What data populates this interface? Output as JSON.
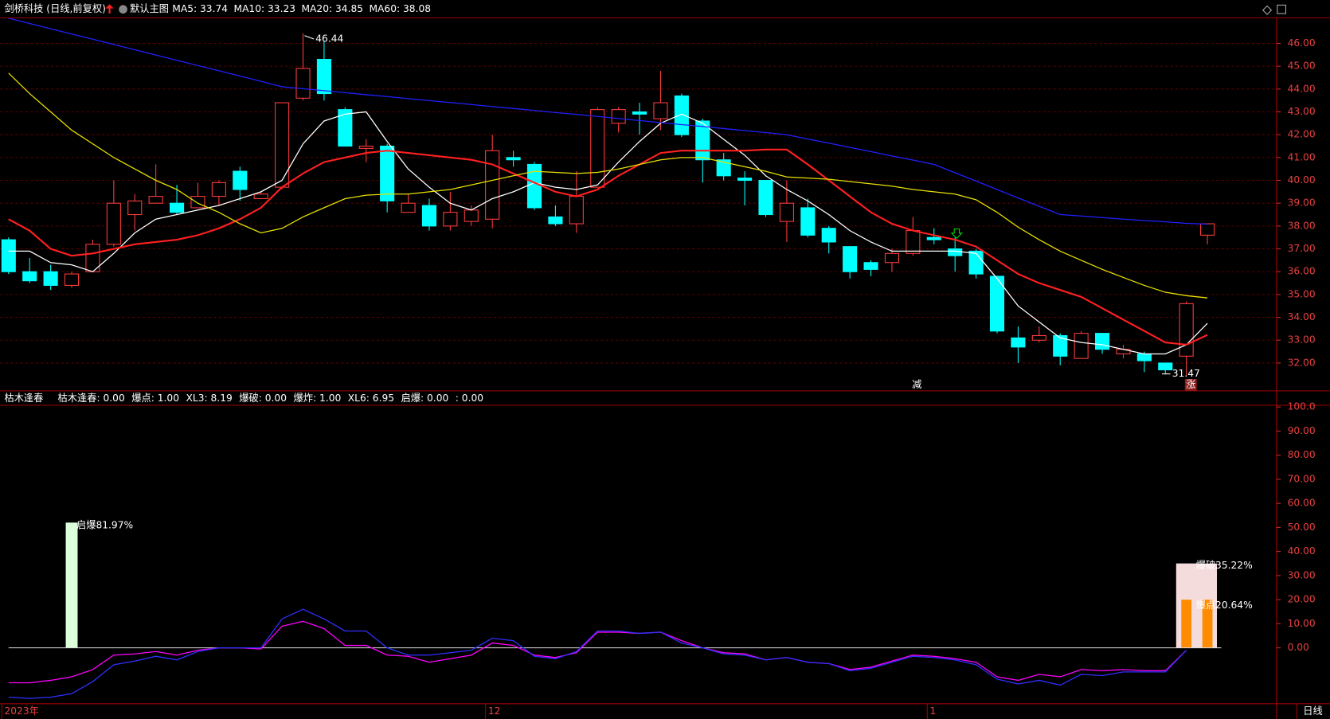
{
  "chart_data": [
    {
      "type": "candlestick",
      "title": "剑桥科技 (日线,前复权)",
      "subtitle": "默认主图",
      "categories": [
        null,
        null,
        null,
        null,
        null,
        null,
        null,
        null,
        null,
        null,
        null,
        null,
        null,
        null,
        null,
        null,
        null,
        null,
        null,
        null,
        null,
        null,
        null,
        null,
        null,
        null,
        null,
        null,
        null,
        null,
        null,
        null,
        null,
        null,
        null,
        null,
        null,
        null,
        null,
        null,
        null,
        null,
        null,
        null,
        null,
        null,
        null,
        null,
        null,
        null,
        null,
        null,
        null,
        null,
        null,
        null,
        null,
        null
      ],
      "open": [
        37.4,
        36.0,
        36.0,
        35.4,
        36.0,
        37.2,
        38.5,
        39.0,
        39.0,
        38.8,
        39.3,
        40.4,
        39.2,
        39.7,
        43.6,
        45.3,
        43.1,
        41.4,
        41.5,
        38.6,
        38.9,
        38.0,
        38.2,
        38.3,
        41.0,
        40.7,
        38.4,
        38.1,
        39.7,
        42.5,
        43.0,
        42.7,
        43.7,
        42.6,
        40.9,
        40.1,
        40.0,
        38.2,
        38.8,
        37.9,
        37.1,
        36.4,
        36.4,
        36.8,
        37.5,
        37.0,
        36.9,
        35.8,
        33.1,
        33.0,
        33.2,
        32.2,
        33.3,
        32.4,
        32.4,
        32.0,
        32.3,
        37.6
      ],
      "high": [
        37.5,
        36.6,
        36.3,
        36.0,
        37.4,
        40.0,
        39.4,
        40.7,
        39.8,
        39.9,
        40.0,
        40.6,
        39.5,
        43.4,
        46.44,
        46.1,
        43.2,
        41.8,
        41.6,
        39.4,
        39.2,
        39.5,
        38.9,
        42.0,
        41.3,
        40.8,
        38.9,
        40.4,
        43.2,
        43.2,
        43.4,
        44.8,
        43.8,
        42.7,
        41.2,
        40.4,
        40.0,
        40.0,
        39.2,
        38.0,
        37.1,
        36.5,
        37.0,
        38.4,
        37.9,
        37.5,
        37.0,
        35.8,
        33.6,
        33.6,
        33.3,
        33.4,
        33.3,
        32.8,
        32.5,
        32.0,
        34.7,
        38.1
      ],
      "low": [
        35.9,
        35.5,
        35.2,
        35.3,
        36.0,
        37.1,
        37.8,
        39.0,
        38.5,
        38.8,
        38.9,
        39.1,
        39.2,
        39.6,
        43.5,
        43.5,
        41.5,
        40.8,
        38.6,
        38.6,
        37.8,
        37.8,
        38.0,
        37.9,
        40.6,
        38.7,
        38.0,
        37.7,
        39.7,
        42.1,
        42.0,
        42.2,
        41.9,
        39.9,
        40.0,
        38.9,
        38.4,
        37.3,
        37.5,
        36.8,
        35.7,
        35.8,
        36.0,
        36.7,
        37.2,
        36.0,
        35.7,
        33.3,
        32.0,
        32.9,
        31.9,
        32.2,
        32.4,
        32.2,
        31.6,
        31.5,
        31.47,
        37.2
      ],
      "close": [
        36.0,
        35.6,
        35.4,
        35.9,
        37.2,
        39.0,
        39.1,
        39.3,
        38.6,
        39.3,
        39.9,
        39.6,
        39.4,
        43.4,
        44.9,
        43.8,
        41.5,
        41.5,
        39.1,
        39.0,
        38.0,
        38.6,
        38.7,
        41.3,
        40.9,
        38.8,
        38.1,
        39.3,
        43.1,
        43.1,
        42.9,
        43.4,
        42.0,
        40.9,
        40.2,
        40.0,
        38.5,
        39.0,
        37.6,
        37.3,
        36.0,
        36.1,
        36.8,
        37.8,
        37.4,
        36.7,
        35.9,
        33.4,
        32.7,
        33.2,
        32.3,
        33.3,
        32.6,
        32.6,
        32.1,
        31.7,
        34.6,
        38.1
      ],
      "up_color": "#ff3c3c",
      "down_color": "#00ffff",
      "series": [
        {
          "name": "MA5: 33.74",
          "color": "#ffffff",
          "values": [
            36.9,
            36.9,
            36.4,
            36.3,
            36.0,
            36.8,
            37.7,
            38.3,
            38.5,
            38.7,
            38.9,
            39.2,
            39.5,
            40.0,
            41.6,
            42.6,
            42.9,
            43.0,
            41.7,
            40.5,
            39.7,
            39.0,
            38.7,
            39.2,
            39.5,
            39.9,
            39.7,
            39.6,
            39.8,
            40.8,
            41.7,
            42.5,
            42.9,
            42.5,
            41.8,
            41.1,
            40.2,
            39.6,
            39.1,
            38.5,
            37.8,
            37.3,
            36.9,
            36.9,
            36.9,
            36.9,
            36.8,
            35.7,
            34.5,
            33.8,
            33.1,
            32.9,
            32.8,
            32.6,
            32.4,
            32.4,
            32.8,
            33.74
          ]
        },
        {
          "name": "MA10: 33.23",
          "color": "#ff2020",
          "values": [
            38.3,
            37.8,
            37.0,
            36.7,
            36.8,
            37.0,
            37.2,
            37.3,
            37.4,
            37.6,
            37.9,
            38.3,
            38.8,
            39.7,
            40.3,
            40.8,
            41.0,
            41.2,
            41.3,
            41.2,
            41.1,
            41.0,
            40.9,
            40.7,
            40.3,
            39.9,
            39.5,
            39.3,
            39.6,
            40.2,
            40.7,
            41.2,
            41.3,
            41.3,
            41.3,
            41.3,
            41.35,
            41.35,
            40.7,
            40.0,
            39.3,
            38.6,
            38.1,
            37.8,
            37.6,
            37.4,
            37.1,
            36.5,
            35.9,
            35.5,
            35.2,
            34.9,
            34.4,
            33.9,
            33.4,
            32.9,
            32.8,
            33.23
          ]
        },
        {
          "name": "MA20: 34.85",
          "color": "#e8e000",
          "values": [
            44.7,
            43.8,
            43.0,
            42.2,
            41.6,
            41.0,
            40.5,
            40.0,
            39.6,
            39.0,
            38.6,
            38.1,
            37.7,
            37.9,
            38.4,
            38.8,
            39.2,
            39.35,
            39.4,
            39.4,
            39.5,
            39.6,
            39.8,
            40.0,
            40.2,
            40.4,
            40.35,
            40.3,
            40.35,
            40.5,
            40.7,
            40.9,
            41.0,
            41.0,
            40.8,
            40.6,
            40.4,
            40.15,
            40.1,
            40.05,
            39.95,
            39.85,
            39.75,
            39.6,
            39.5,
            39.4,
            39.15,
            38.6,
            37.95,
            37.4,
            36.9,
            36.5,
            36.1,
            35.75,
            35.4,
            35.1,
            34.95,
            34.85
          ]
        },
        {
          "name": "MA60: 38.08",
          "color": "#2020ff",
          "values": [
            47.1,
            46.87,
            46.64,
            46.41,
            46.18,
            45.95,
            45.72,
            45.49,
            45.26,
            45.03,
            44.8,
            44.57,
            44.34,
            44.1,
            44.01,
            43.93,
            43.84,
            43.75,
            43.67,
            43.58,
            43.49,
            43.41,
            43.32,
            43.23,
            43.15,
            43.06,
            42.97,
            42.89,
            42.8,
            42.71,
            42.62,
            42.53,
            42.44,
            42.36,
            42.27,
            42.18,
            42.09,
            42.0,
            41.81,
            41.63,
            41.44,
            41.26,
            41.07,
            40.89,
            40.7,
            40.33,
            39.97,
            39.6,
            39.23,
            38.87,
            38.5,
            38.44,
            38.37,
            38.3,
            38.24,
            38.18,
            38.12,
            38.08
          ]
        }
      ],
      "ylim": [
        30.78,
        47.12
      ],
      "yticks": [
        {
          "value": 32,
          "label": "32.00"
        },
        {
          "value": 33,
          "label": "33.00"
        },
        {
          "value": 34,
          "label": "34.00"
        },
        {
          "value": 35,
          "label": "35.00"
        },
        {
          "value": 36,
          "label": "36.00"
        },
        {
          "value": 37,
          "label": "37.00"
        },
        {
          "value": 38,
          "label": "38.00"
        },
        {
          "value": 39,
          "label": "39.00"
        },
        {
          "value": 40,
          "label": "40.00"
        },
        {
          "value": 41,
          "label": "41.00"
        },
        {
          "value": 42,
          "label": "42.00"
        },
        {
          "value": 43,
          "label": "43.00"
        },
        {
          "value": 44,
          "label": "44.00"
        },
        {
          "value": 45,
          "label": "45.00"
        },
        {
          "value": 46,
          "label": "46.00"
        }
      ],
      "grid": true,
      "annotations": [
        "46.44",
        "31.47",
        "减",
        "涨"
      ]
    },
    {
      "type": "indicator",
      "title": "枯木逢春",
      "legend": [
        {
          "text": "枯木逢春: 0.00",
          "color": "#ffffff"
        },
        {
          "text": "爆点: 1.00",
          "color": "#ff00ff"
        },
        {
          "text": "XL3: 8.19",
          "color": "#00ff00"
        },
        {
          "text": "爆破: 0.00",
          "color": "#ffffff"
        },
        {
          "text": "爆炸: 1.00",
          "color": "#3030ff"
        },
        {
          "text": "XL6: 6.95",
          "color": "#ffffff"
        },
        {
          "text": "启爆: 0.00",
          "color": "#ffff00"
        },
        {
          "text": ": 0.00",
          "color": "#ffffff"
        }
      ],
      "categories": [
        "2023年",
        null,
        null,
        null,
        null,
        null,
        null,
        null,
        null,
        null,
        null,
        null,
        null,
        null,
        null,
        null,
        null,
        null,
        null,
        null,
        null,
        null,
        null,
        "12",
        null,
        null,
        null,
        null,
        null,
        null,
        null,
        null,
        null,
        null,
        null,
        null,
        null,
        null,
        null,
        null,
        null,
        null,
        null,
        null,
        "1",
        null,
        null,
        null,
        null,
        null,
        null,
        null,
        null,
        null,
        null,
        null,
        null,
        null
      ],
      "series": [
        {
          "color": "#ff00ff",
          "values": [
            -14.5,
            -14.5,
            -13.5,
            -12,
            -9,
            -3,
            -2.5,
            -1.5,
            -3,
            -1,
            0,
            0,
            -0.5,
            9,
            11,
            8,
            1,
            1,
            -3,
            -3.5,
            -6,
            -4.5,
            -3,
            2,
            1,
            -3,
            -4,
            -2,
            6.5,
            6.5,
            6,
            6.5,
            3,
            0,
            -2,
            -2.5,
            -5,
            -4,
            -6,
            -6.5,
            -9,
            -8,
            -5.5,
            -3,
            -3.5,
            -4.5,
            -6,
            -12,
            -13.5,
            -11,
            -12,
            -9,
            -9.5,
            -9,
            -9.5,
            -9.5,
            -1,
            null
          ]
        },
        {
          "color": "#3030ff",
          "values": [
            -20.5,
            -21,
            -20.5,
            -19,
            -14,
            -7,
            -5.5,
            -3.5,
            -5,
            -1.5,
            0,
            0,
            0,
            12,
            16,
            12,
            7,
            7,
            0,
            -3,
            -3,
            -2,
            -1,
            4,
            3,
            -3.5,
            -4.5,
            -1.5,
            7,
            7,
            6,
            6.5,
            2,
            0,
            -2.5,
            -3,
            -5,
            -4,
            -6,
            -6.5,
            -9.5,
            -8.5,
            -6,
            -3.5,
            -4,
            -5,
            -7,
            -13,
            -15,
            -13.5,
            -15.5,
            -11,
            -11.5,
            -10,
            -10,
            -10,
            -1,
            null
          ]
        }
      ],
      "bars": [
        {
          "color": "#dcffdc",
          "values": [
            null,
            null,
            null,
            52,
            null,
            null,
            null,
            null,
            null,
            null,
            null,
            null,
            null,
            null,
            null,
            null,
            null,
            null,
            null,
            null,
            null,
            null,
            null,
            null,
            null,
            null,
            null,
            null,
            null,
            null,
            null,
            null,
            null,
            null,
            null,
            null,
            null,
            null,
            null,
            null,
            null,
            null,
            null,
            null,
            null,
            null,
            null,
            null,
            null,
            null,
            null,
            null,
            null,
            null,
            null,
            null,
            null,
            null
          ]
        },
        {
          "color": "#f5dcdc",
          "values": [
            null,
            null,
            null,
            null,
            null,
            null,
            null,
            null,
            null,
            null,
            null,
            null,
            null,
            null,
            null,
            null,
            null,
            null,
            null,
            null,
            null,
            null,
            null,
            null,
            null,
            null,
            null,
            null,
            null,
            null,
            null,
            null,
            null,
            null,
            null,
            null,
            null,
            null,
            null,
            null,
            null,
            null,
            null,
            null,
            null,
            null,
            null,
            null,
            null,
            null,
            null,
            null,
            null,
            null,
            null,
            null,
            35,
            35
          ]
        },
        {
          "color": "#ff8c00",
          "values": [
            null,
            null,
            null,
            null,
            null,
            null,
            null,
            null,
            null,
            null,
            null,
            null,
            null,
            null,
            null,
            null,
            null,
            null,
            null,
            null,
            null,
            null,
            null,
            null,
            null,
            null,
            null,
            null,
            null,
            null,
            null,
            null,
            null,
            null,
            null,
            null,
            null,
            null,
            null,
            null,
            null,
            null,
            null,
            null,
            null,
            null,
            null,
            null,
            null,
            null,
            null,
            null,
            null,
            null,
            null,
            null,
            20,
            20
          ]
        }
      ],
      "ylim": [
        -23.2,
        100.7
      ],
      "yticks": [
        {
          "value": 0,
          "label": "0.00"
        },
        {
          "value": 10,
          "label": "10.00"
        },
        {
          "value": 20,
          "label": "20.00"
        },
        {
          "value": 30,
          "label": "30.00"
        },
        {
          "value": 40,
          "label": "40.00"
        },
        {
          "value": 50,
          "label": "50.00"
        },
        {
          "value": 60,
          "label": "60.00"
        },
        {
          "value": 70,
          "label": "70.00"
        },
        {
          "value": 80,
          "label": "80.00"
        },
        {
          "value": 90,
          "label": "90.00"
        },
        {
          "value": 100,
          "label": "100.0"
        }
      ],
      "annotations": [
        "启爆81.97%",
        "爆破35.22%",
        "爆点20.64%"
      ],
      "period_label": "日线"
    }
  ]
}
